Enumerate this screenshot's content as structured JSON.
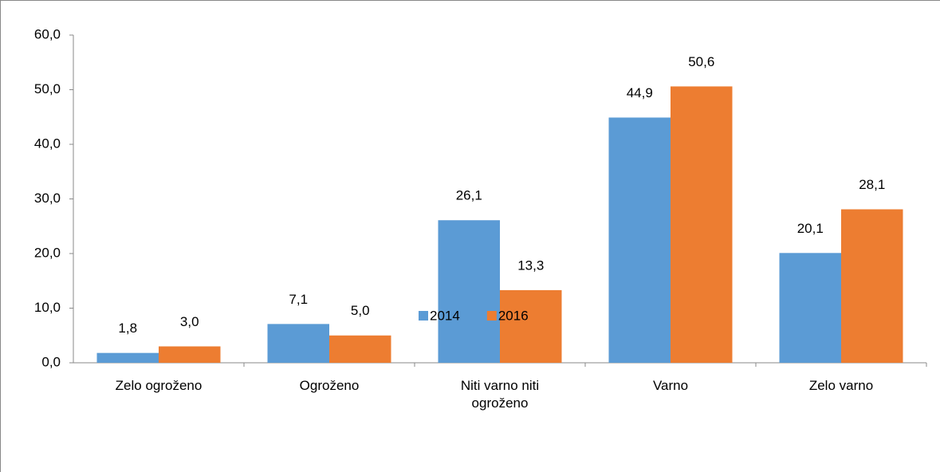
{
  "chart_data": {
    "type": "bar",
    "categories": [
      "Zelo ogroženo",
      "Ogroženo",
      "Niti varno niti ogroženo",
      "Varno",
      "Zelo varno"
    ],
    "series": [
      {
        "name": "2014",
        "color": "#5b9bd5",
        "values": [
          1.8,
          7.1,
          26.1,
          44.9,
          20.1
        ],
        "value_labels": [
          "1,8",
          "7,1",
          "26,1",
          "44,9",
          "20,1"
        ]
      },
      {
        "name": "2016",
        "color": "#ed7d31",
        "values": [
          3.0,
          5.0,
          13.3,
          50.6,
          28.1
        ],
        "value_labels": [
          "3,0",
          "5,0",
          "13,3",
          "50,6",
          "28,1"
        ]
      }
    ],
    "ylim": [
      0,
      60
    ],
    "yticks": [
      {
        "value": 0,
        "label": "0,0"
      },
      {
        "value": 10,
        "label": "10,0"
      },
      {
        "value": 20,
        "label": "20,0"
      },
      {
        "value": 30,
        "label": "30,0"
      },
      {
        "value": 40,
        "label": "40,0"
      },
      {
        "value": 50,
        "label": "50,0"
      },
      {
        "value": 60,
        "label": "60,0"
      }
    ],
    "legend": "bottom"
  }
}
